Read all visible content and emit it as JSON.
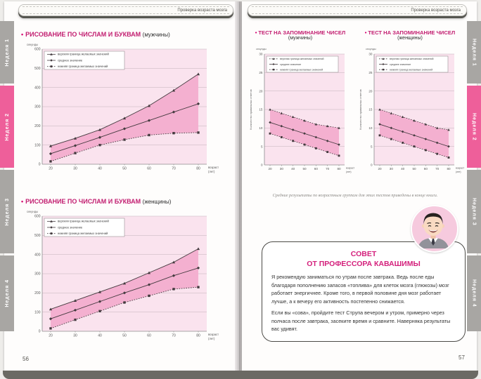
{
  "header": {
    "banner_text": "Проверка возраста мозга"
  },
  "ui": {
    "bullet": "•"
  },
  "colors": {
    "accent_magenta": "#c21d70",
    "tab_active": "#ee5f9a",
    "tab_inactive": "#a8a6a3",
    "plot_bg": "#fae3ee",
    "band": "#f4b0d0",
    "grid": "#c3b3ba",
    "line": "#433a3e",
    "axis": "#8d8d8d"
  },
  "tabs": {
    "items": [
      "Неделя 1",
      "Неделя 2",
      "Неделя 3",
      "Неделя 4"
    ],
    "active_index": 1
  },
  "pages": {
    "left_number": "56",
    "right_number": "57"
  },
  "note": {
    "text": "Средние результаты по возрастным группам для этих тестов приведены в конце книги."
  },
  "advice": {
    "title_line1": "СОВЕТ",
    "title_line2": "ОТ ПРОФЕССОРА КАВАШИМЫ",
    "para1": "Я рекомендую заниматься по утрам после завтрака. Ведь после еды благодаря пополнению запасов «топлива» для клеток мозга (глюкозы) мозг работает энергичнее. Кроме того, в первой половине дня мозг работает лучше, а к вечеру его активность постепенно снижается.",
    "para2": "Если вы «сова», пройдите тест Струпа вечером и утром, примерно через полчаса после завтрака, засеките время и сравните. Наверняка результаты вас удивят."
  },
  "chart_data": [
    {
      "type": "line",
      "title": "РИСОВАНИЕ ПО ЧИСЛАМ И БУКВАМ",
      "subtitle": "(мужчины)",
      "unit_label": "секунды",
      "xlabel_line1": "возраст",
      "xlabel_line2": "(лет)",
      "x": [
        20,
        30,
        40,
        50,
        60,
        70,
        80
      ],
      "ylim": [
        0,
        600
      ],
      "ytick": 100,
      "series": [
        {
          "name": "верхняя граница желаемых значений",
          "marker": "triangle",
          "style": "solid",
          "values": [
            95,
            135,
            180,
            240,
            305,
            385,
            470
          ]
        },
        {
          "name": "среднее значение",
          "marker": "diamond",
          "style": "solid",
          "values": [
            55,
            97,
            140,
            185,
            228,
            272,
            315
          ]
        },
        {
          "name": "нижняя граница желаемых значений",
          "marker": "square",
          "style": "dotted",
          "values": [
            15,
            58,
            100,
            128,
            152,
            162,
            165
          ]
        }
      ]
    },
    {
      "type": "line",
      "title": "РИСОВАНИЕ ПО ЧИСЛАМ И БУКВАМ",
      "subtitle": "(женщины)",
      "unit_label": "секунды",
      "xlabel_line1": "возраст",
      "xlabel_line2": "(лет)",
      "x": [
        20,
        30,
        40,
        50,
        60,
        70,
        80
      ],
      "ylim": [
        0,
        600
      ],
      "ytick": 100,
      "series": [
        {
          "name": "верхняя граница желаемых значений",
          "marker": "triangle",
          "style": "solid",
          "values": [
            115,
            160,
            205,
            250,
            305,
            360,
            430
          ]
        },
        {
          "name": "среднее значение",
          "marker": "diamond",
          "style": "solid",
          "values": [
            65,
            110,
            155,
            200,
            243,
            290,
            330
          ]
        },
        {
          "name": "нижняя граница желаемых значений",
          "marker": "square",
          "style": "dotted",
          "values": [
            15,
            60,
            105,
            150,
            185,
            220,
            230
          ]
        }
      ]
    },
    {
      "type": "line",
      "title": "ТЕСТ НА ЗАПОМИНАНИЕ ЧИСЕЛ",
      "subtitle": "(мужчины)",
      "unit_label": "секунды",
      "yaxis_label": "Количество правильных ответов",
      "xlabel_line1": "возраст",
      "xlabel_line2": "(лет)",
      "x": [
        20,
        30,
        40,
        50,
        60,
        70,
        80
      ],
      "ylim": [
        0,
        30
      ],
      "ytick": 5,
      "series": [
        {
          "name": "верхняя граница желаемых значений",
          "marker": "triangle",
          "style": "dotted",
          "values": [
            15,
            14,
            13,
            12,
            11,
            10.5,
            10
          ]
        },
        {
          "name": "среднее значение",
          "marker": "diamond",
          "style": "solid",
          "values": [
            11.5,
            10.5,
            9.5,
            8.5,
            7.5,
            6.5,
            5.5
          ]
        },
        {
          "name": "нижняя граница желаемых значений",
          "marker": "square",
          "style": "dotted",
          "values": [
            8.5,
            7.5,
            6.5,
            5.5,
            4.5,
            3.5,
            2.5
          ]
        }
      ]
    },
    {
      "type": "line",
      "title": "ТЕСТ НА ЗАПОМИНАНИЕ ЧИСЕЛ",
      "subtitle": "(женщины)",
      "unit_label": "секунды",
      "yaxis_label": "Количество правильных ответов",
      "xlabel_line1": "возраст",
      "xlabel_line2": "(лет)",
      "x": [
        20,
        30,
        40,
        50,
        60,
        70,
        80
      ],
      "ylim": [
        0,
        30
      ],
      "ytick": 5,
      "series": [
        {
          "name": "верхняя граница желаемых значений",
          "marker": "triangle",
          "style": "dotted",
          "values": [
            15,
            14,
            13,
            12,
            11,
            10,
            9.5
          ]
        },
        {
          "name": "среднее значение",
          "marker": "diamond",
          "style": "solid",
          "values": [
            11,
            10,
            9,
            8,
            7,
            6,
            5
          ]
        },
        {
          "name": "нижняя граница желаемых значений",
          "marker": "square",
          "style": "dotted",
          "values": [
            8,
            7,
            6,
            5,
            4,
            3,
            2
          ]
        }
      ]
    }
  ]
}
